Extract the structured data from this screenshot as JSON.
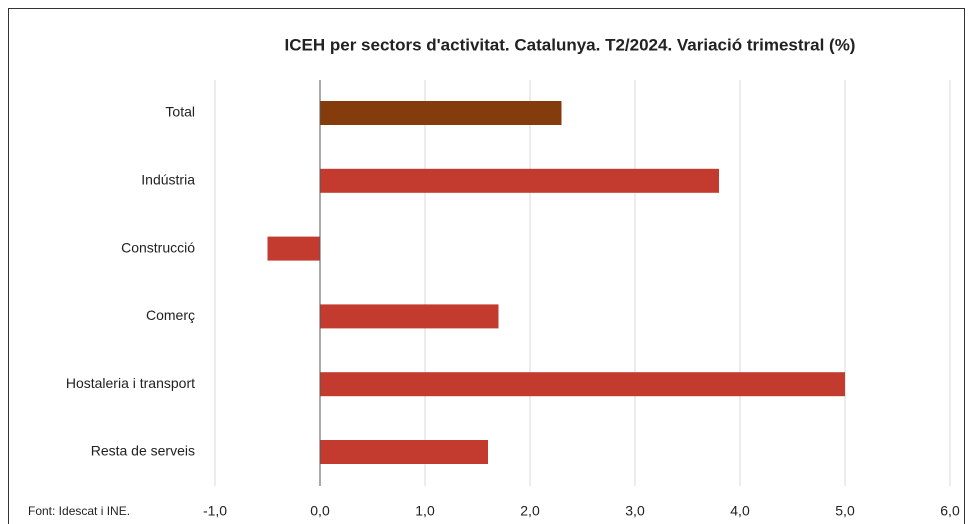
{
  "chart_data": {
    "type": "barh",
    "title": "ICEH per sectors d'activitat. Catalunya. T2/2024.  Variació trimestral (%)",
    "note": "Font: Idescat i INE.",
    "categories": [
      "Total",
      "Indústria",
      "Construcció",
      "Comerç",
      "Hostaleria i transport",
      "Resta de serveis"
    ],
    "values": [
      2.3,
      3.8,
      -0.5,
      1.7,
      5.0,
      1.6
    ],
    "colors": [
      "#843c0c",
      "#c33b2e",
      "#c33b2e",
      "#c33b2e",
      "#c33b2e",
      "#c33b2e"
    ],
    "xlim": [
      -1,
      6
    ],
    "xticks": [
      {
        "value": -1,
        "label": "-1,0"
      },
      {
        "value": 0,
        "label": "0,0"
      },
      {
        "value": 1,
        "label": "1,0"
      },
      {
        "value": 2,
        "label": "2,0"
      },
      {
        "value": 3,
        "label": "3,0"
      },
      {
        "value": 4,
        "label": "4,0"
      },
      {
        "value": 5,
        "label": "5,0"
      },
      {
        "value": 6,
        "label": "6,0"
      }
    ],
    "grid": true
  }
}
